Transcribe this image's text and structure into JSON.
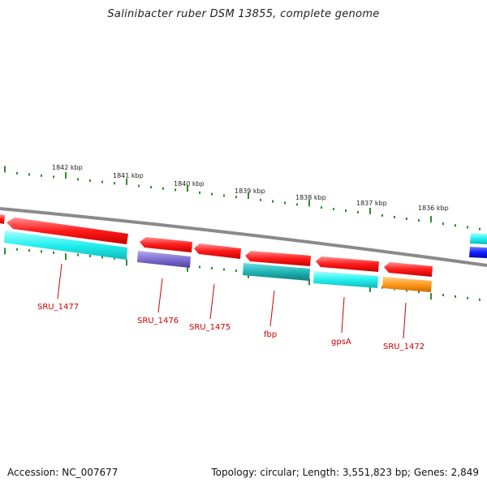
{
  "title": "Salinibacter ruber DSM 13855, complete genome",
  "footer": {
    "accession": "Accession: NC_007677",
    "summary": "Topology: circular; Length: 3,551,823 bp; Genes: 2,849"
  },
  "colors": {
    "backbone": "#8a8a8a",
    "tick": "#2f8a2f",
    "label": "#cc0000",
    "red_gene": "#ff1a1a",
    "cyan_gene": "#22f0f0",
    "teal_gene": "#1fb5b5",
    "purple_gene": "#7f6fd0",
    "orange_gene": "#ff9a1a",
    "blue_gene": "#1020ff"
  },
  "scale": {
    "kbp_labels": [
      "1842 kbp",
      "1841 kbp",
      "1840 kbp",
      "1839 kbp",
      "1838 kbp",
      "1837 kbp",
      "1836 kbp"
    ]
  },
  "genes": {
    "labels": [
      "SRU_1477",
      "SRU_1476",
      "SRU_1475",
      "fbp",
      "gpsA",
      "SRU_1472"
    ]
  }
}
